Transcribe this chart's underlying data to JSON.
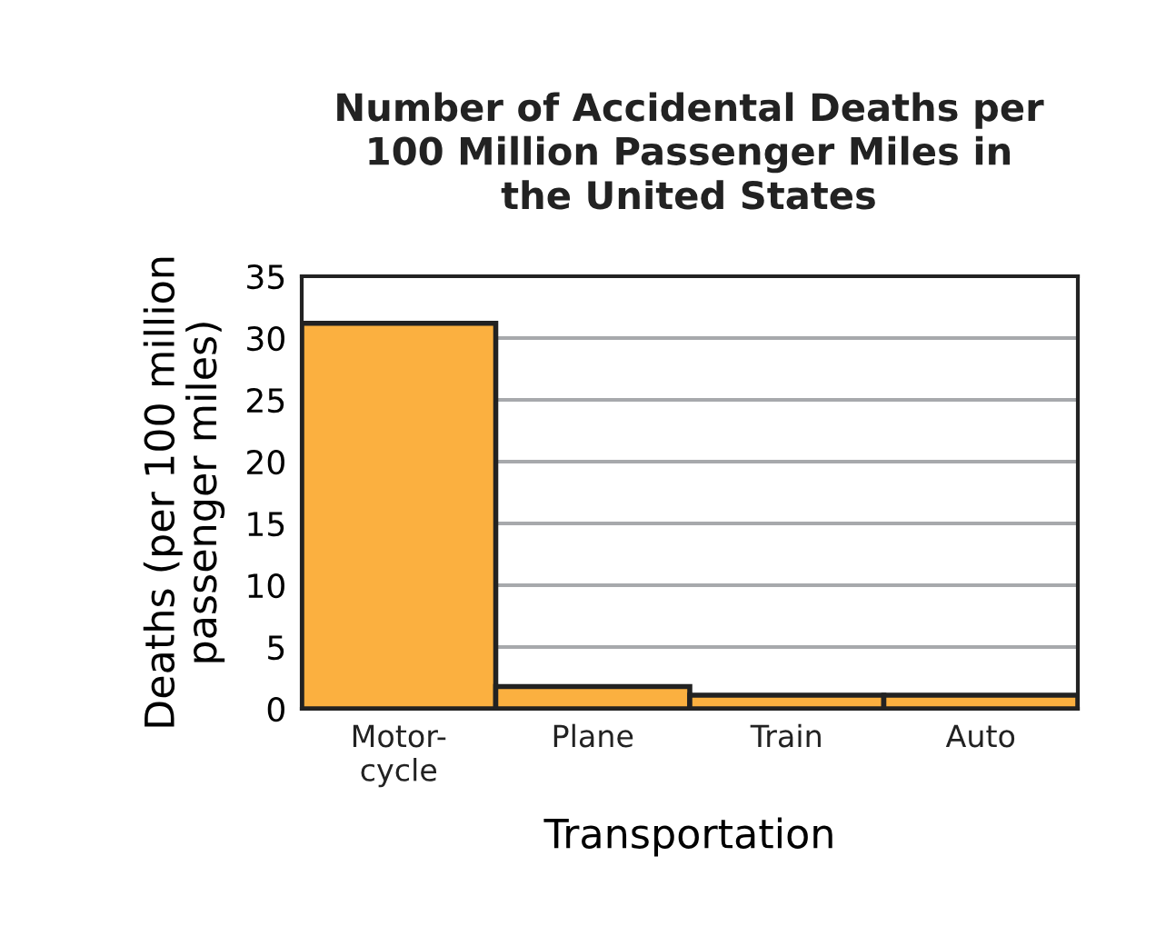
{
  "chart_data": {
    "type": "bar",
    "title": "Number of Accidental Deaths per\n100 Million Passenger Miles in\nthe United States",
    "xlabel": "Transportation",
    "ylabel": "Deaths (per 100 million\npassenger miles)",
    "categories": [
      "Motor-\ncycle",
      "Plane",
      "Train",
      "Auto"
    ],
    "values": [
      31.2,
      1.8,
      1.1,
      1.1
    ],
    "color": "#fbb040",
    "ylim": [
      0,
      35
    ],
    "yticks": [
      0,
      5,
      10,
      15,
      20,
      25,
      30,
      35
    ],
    "grid": "y"
  }
}
